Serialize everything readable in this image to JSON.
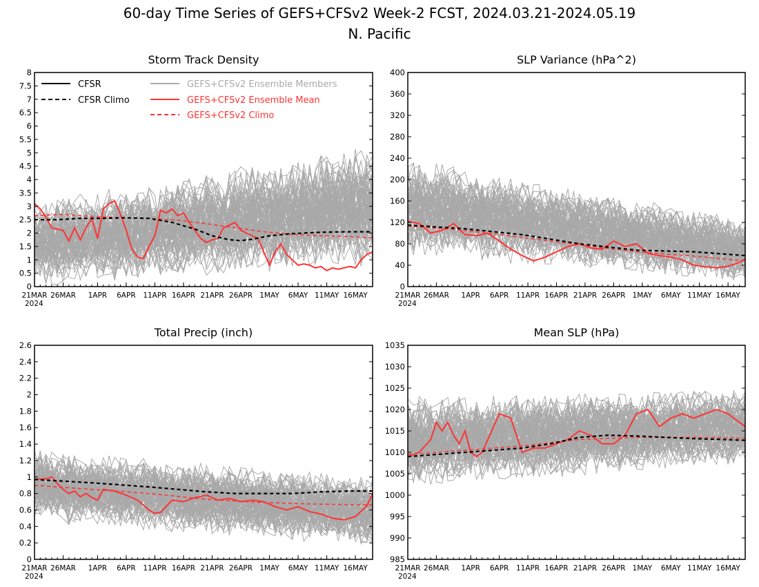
{
  "figure": {
    "title_line1": "60-day Time Series of GEFS+CFSv2 Week-2 FCST, 2024.03.21-2024.05.19",
    "title_line2": "N. Pacific"
  },
  "legend": {
    "entries": [
      {
        "label": "CFSR",
        "color": "#000000",
        "dashed": false
      },
      {
        "label": "CFSR Climo",
        "color": "#000000",
        "dashed": true
      },
      {
        "label": "GEFS+CFSv2 Ensemble Members",
        "color": "#a9a9a9",
        "dashed": false
      },
      {
        "label": "GEFS+CFSv2 Ensemble Mean",
        "color": "#ff3333",
        "dashed": false
      },
      {
        "label": "GEFS+CFSv2 Climo",
        "color": "#ff3333",
        "dashed": true
      }
    ]
  },
  "colors": {
    "members": "#a9a9a9",
    "ens_mean": "#ff3333",
    "ens_climo": "#ff3333",
    "cfsr_climo": "#000000",
    "axes": "#000000"
  },
  "chart_data": [
    {
      "type": "line",
      "title": "Storm Track Density",
      "x_tick_labels": [
        "21MAR",
        "26MAR",
        "1APR",
        "6APR",
        "11APR",
        "16APR",
        "21APR",
        "26APR",
        "1MAY",
        "6MAY",
        "11MAY",
        "16MAY"
      ],
      "x_tick_days": [
        0,
        5,
        11,
        16,
        21,
        26,
        31,
        36,
        41,
        46,
        51,
        56
      ],
      "x_year_label": "2024",
      "y_ticks": [
        "0",
        "0.5",
        "1",
        "1.5",
        "2",
        "2.5",
        "3",
        "3.5",
        "4",
        "4.5",
        "5",
        "5.5",
        "6",
        "6.5",
        "7",
        "7.5",
        "8"
      ],
      "ylim": [
        0,
        8
      ],
      "xlim": [
        0,
        59
      ],
      "grid": false,
      "legend_position": "top-left",
      "members": {
        "count": 80,
        "band_low": [
          0.2,
          1.0
        ],
        "band_high": [
          3.0,
          5.0
        ]
      },
      "series": [
        {
          "name": "GEFS+CFSv2 Ensemble Mean",
          "style": "solid-red",
          "x": [
            0,
            1,
            2,
            3,
            4,
            5,
            6,
            7,
            8,
            9,
            10,
            11,
            12,
            13,
            14,
            15,
            16,
            17,
            18,
            19,
            20,
            21,
            22,
            23,
            24,
            25,
            26,
            27,
            28,
            29,
            30,
            31,
            32,
            33,
            34,
            35,
            36,
            37,
            38,
            39,
            40,
            41,
            42,
            43,
            44,
            45,
            46,
            47,
            48,
            49,
            50,
            51,
            52,
            53,
            54,
            55,
            56,
            57,
            58,
            59
          ],
          "values": [
            3.1,
            2.9,
            2.6,
            2.2,
            2.15,
            2.1,
            1.7,
            2.2,
            1.75,
            2.2,
            2.55,
            1.8,
            2.9,
            3.1,
            3.2,
            2.7,
            2.1,
            1.4,
            1.1,
            1.05,
            1.5,
            1.9,
            2.85,
            2.75,
            2.9,
            2.65,
            2.75,
            2.4,
            2.1,
            1.8,
            1.65,
            1.75,
            1.8,
            2.2,
            2.3,
            2.4,
            2.1,
            2.0,
            1.9,
            1.8,
            1.3,
            0.8,
            1.3,
            1.6,
            1.2,
            1.0,
            0.8,
            0.85,
            0.8,
            0.7,
            0.75,
            0.6,
            0.7,
            0.65,
            0.7,
            0.75,
            0.7,
            1.0,
            1.2,
            1.3
          ]
        },
        {
          "name": "GEFS+CFSv2 Climo",
          "style": "dashed-red",
          "x": [
            0,
            5,
            10,
            15,
            20,
            25,
            30,
            35,
            40,
            45,
            50,
            55,
            59
          ],
          "values": [
            2.65,
            2.7,
            2.62,
            2.58,
            2.55,
            2.48,
            2.35,
            2.2,
            2.05,
            1.95,
            1.9,
            1.87,
            1.82
          ]
        },
        {
          "name": "CFSR Climo",
          "style": "dashed-black",
          "x": [
            0,
            4,
            8,
            12,
            16,
            20,
            24,
            28,
            31,
            34,
            36,
            38,
            41,
            45,
            50,
            55,
            59
          ],
          "values": [
            2.5,
            2.5,
            2.55,
            2.55,
            2.57,
            2.55,
            2.4,
            2.15,
            1.9,
            1.75,
            1.72,
            1.77,
            1.9,
            1.98,
            2.03,
            2.05,
            2.05
          ]
        }
      ]
    },
    {
      "type": "line",
      "title": "SLP Variance (hPa^2)",
      "x_tick_labels": [
        "21MAR",
        "26MAR",
        "1APR",
        "6APR",
        "11APR",
        "16APR",
        "21APR",
        "26APR",
        "1MAY",
        "6MAY",
        "11MAY",
        "16MAY"
      ],
      "x_tick_days": [
        0,
        5,
        11,
        16,
        21,
        26,
        31,
        36,
        41,
        46,
        51,
        56
      ],
      "x_year_label": "2024",
      "y_ticks": [
        "0",
        "40",
        "80",
        "120",
        "160",
        "200",
        "240",
        "280",
        "320",
        "360",
        "400"
      ],
      "ylim": [
        0,
        400
      ],
      "xlim": [
        0,
        59
      ],
      "grid": false,
      "members": {
        "count": 80,
        "band_low": [
          70,
          15
        ],
        "band_high": [
          230,
          120
        ]
      },
      "series": [
        {
          "name": "GEFS+CFSv2 Ensemble Mean",
          "style": "solid-red",
          "x": [
            0,
            2,
            4,
            6,
            8,
            10,
            12,
            14,
            16,
            18,
            20,
            22,
            24,
            26,
            28,
            30,
            32,
            34,
            36,
            38,
            40,
            42,
            44,
            46,
            48,
            50,
            52,
            54,
            56,
            58,
            59
          ],
          "values": [
            122,
            118,
            100,
            105,
            118,
            97,
            95,
            100,
            85,
            70,
            58,
            48,
            55,
            65,
            75,
            80,
            72,
            70,
            85,
            75,
            80,
            62,
            58,
            55,
            50,
            40,
            37,
            35,
            38,
            45,
            52
          ]
        },
        {
          "name": "GEFS+CFSv2 Climo",
          "style": "dashed-red",
          "x": [
            0,
            10,
            20,
            30,
            40,
            50,
            59
          ],
          "values": [
            113,
            105,
            92,
            78,
            65,
            57,
            48
          ]
        },
        {
          "name": "CFSR Climo",
          "style": "dashed-black",
          "x": [
            0,
            10,
            20,
            30,
            40,
            50,
            59
          ],
          "values": [
            115,
            108,
            97,
            80,
            68,
            65,
            58
          ]
        }
      ]
    },
    {
      "type": "line",
      "title": "Total Precip (inch)",
      "x_tick_labels": [
        "21MAR",
        "26MAR",
        "1APR",
        "6APR",
        "11APR",
        "16APR",
        "21APR",
        "26APR",
        "1MAY",
        "6MAY",
        "11MAY",
        "16MAY"
      ],
      "x_tick_days": [
        0,
        5,
        11,
        16,
        21,
        26,
        31,
        36,
        41,
        46,
        51,
        56
      ],
      "x_year_label": "2024",
      "y_ticks": [
        "0",
        "0.2",
        "0.4",
        "0.6",
        "0.8",
        "1",
        "1.2",
        "1.4",
        "1.6",
        "1.8",
        "2",
        "2.2",
        "2.4",
        "2.6"
      ],
      "ylim": [
        0,
        2.6
      ],
      "xlim": [
        0,
        59
      ],
      "grid": false,
      "members": {
        "count": 80,
        "band_low": [
          0.5,
          0.2
        ],
        "band_high": [
          1.3,
          0.95
        ]
      },
      "series": [
        {
          "name": "GEFS+CFSv2 Ensemble Mean",
          "style": "solid-red",
          "x": [
            0,
            2,
            3,
            4,
            5,
            6,
            7,
            8,
            9,
            10,
            11,
            12,
            14,
            16,
            18,
            20,
            21,
            22,
            24,
            26,
            28,
            30,
            32,
            34,
            36,
            38,
            40,
            42,
            44,
            46,
            48,
            50,
            52,
            54,
            56,
            58,
            59
          ],
          "values": [
            0.97,
            0.98,
            1.0,
            0.92,
            0.85,
            0.8,
            0.83,
            0.76,
            0.8,
            0.75,
            0.72,
            0.85,
            0.83,
            0.78,
            0.72,
            0.6,
            0.56,
            0.57,
            0.72,
            0.7,
            0.75,
            0.78,
            0.72,
            0.74,
            0.7,
            0.72,
            0.7,
            0.64,
            0.6,
            0.64,
            0.58,
            0.55,
            0.5,
            0.48,
            0.52,
            0.65,
            0.8
          ]
        },
        {
          "name": "GEFS+CFSv2 Climo",
          "style": "dashed-red",
          "x": [
            0,
            10,
            20,
            30,
            40,
            50,
            59
          ],
          "values": [
            0.9,
            0.85,
            0.8,
            0.73,
            0.69,
            0.67,
            0.66
          ]
        },
        {
          "name": "CFSR Climo",
          "style": "dashed-black",
          "x": [
            0,
            10,
            20,
            30,
            35,
            40,
            45,
            50,
            55,
            59
          ],
          "values": [
            0.97,
            0.93,
            0.88,
            0.82,
            0.8,
            0.8,
            0.8,
            0.82,
            0.83,
            0.83
          ]
        }
      ]
    },
    {
      "type": "line",
      "title": "Mean SLP (hPa)",
      "x_tick_labels": [
        "21MAR",
        "26MAR",
        "1APR",
        "6APR",
        "11APR",
        "16APR",
        "21APR",
        "26APR",
        "1MAY",
        "6MAY",
        "11MAY",
        "16MAY"
      ],
      "x_tick_days": [
        0,
        5,
        11,
        16,
        21,
        26,
        31,
        36,
        41,
        46,
        51,
        56
      ],
      "x_year_label": "2024",
      "y_ticks": [
        "985",
        "990",
        "995",
        "1000",
        "1005",
        "1010",
        "1015",
        "1020",
        "1025",
        "1030",
        "1035"
      ],
      "ylim": [
        985,
        1035
      ],
      "xlim": [
        0,
        59
      ],
      "grid": false,
      "members": {
        "count": 80,
        "band_low": [
          1003,
          1008
        ],
        "band_high": [
          1022,
          1024
        ]
      },
      "series": [
        {
          "name": "GEFS+CFSv2 Ensemble Mean",
          "style": "solid-red",
          "x": [
            0,
            2,
            4,
            5,
            6,
            7,
            8,
            9,
            10,
            11,
            12,
            13,
            14,
            16,
            18,
            20,
            22,
            24,
            26,
            28,
            30,
            32,
            34,
            36,
            38,
            40,
            42,
            44,
            46,
            48,
            50,
            52,
            54,
            56,
            58,
            59
          ],
          "values": [
            1009,
            1010,
            1013,
            1017,
            1015,
            1017,
            1014,
            1012,
            1015,
            1010,
            1009,
            1010,
            1013,
            1019,
            1018,
            1010,
            1011,
            1011,
            1012,
            1013,
            1015,
            1014,
            1012,
            1012,
            1014,
            1019,
            1020,
            1016,
            1018,
            1019,
            1018,
            1019,
            1020,
            1019,
            1017,
            1016
          ]
        },
        {
          "name": "GEFS+CFSv2 Climo",
          "style": "dashed-red",
          "x": [
            0,
            10,
            20,
            30,
            40,
            50,
            59
          ],
          "values": [
            1009.5,
            1010.5,
            1011.5,
            1013,
            1013.5,
            1013.5,
            1013.3
          ]
        },
        {
          "name": "CFSR Climo",
          "style": "dashed-black",
          "x": [
            0,
            10,
            20,
            25,
            30,
            35,
            40,
            45,
            50,
            55,
            59
          ],
          "values": [
            1009,
            1010,
            1011,
            1012,
            1013.5,
            1014,
            1013.8,
            1013.5,
            1013.2,
            1013,
            1012.8
          ]
        }
      ]
    }
  ]
}
